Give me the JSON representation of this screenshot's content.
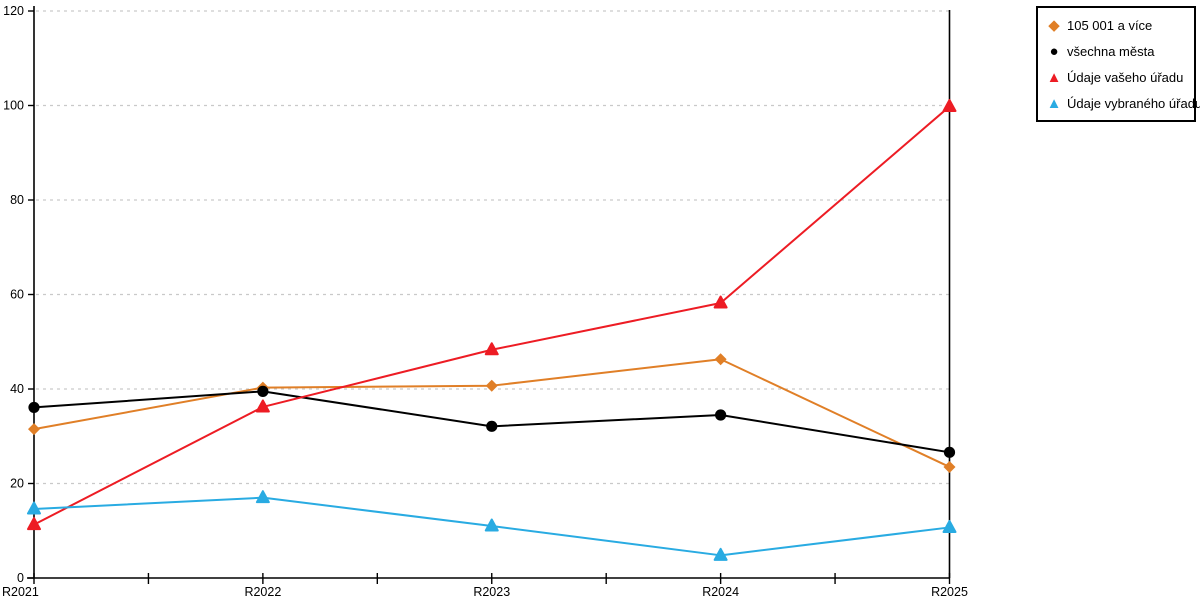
{
  "chart_data": {
    "type": "line",
    "title": "",
    "xlabel": "",
    "ylabel": "",
    "categories": [
      "R2021",
      "R2022",
      "R2023",
      "R2024",
      "R2025"
    ],
    "series": [
      {
        "name": "105 001 a více",
        "marker": "diamond",
        "color": "#E07F27",
        "values": [
          31.5,
          40.3,
          40.7,
          46.3,
          23.5
        ]
      },
      {
        "name": "všechna města",
        "marker": "circle",
        "color": "#000000",
        "values": [
          36.1,
          39.5,
          32.1,
          34.5,
          26.6
        ]
      },
      {
        "name": "Údaje vašeho úřadu",
        "marker": "triangle",
        "color": "#ED1C24",
        "values": [
          11.3,
          36.2,
          48.3,
          58.2,
          99.8
        ]
      },
      {
        "name": "Údaje vybraného úřadu",
        "marker": "triangle",
        "color": "#29ABE2",
        "values": [
          14.6,
          17.0,
          11.0,
          4.8,
          10.7
        ]
      }
    ],
    "ylim": [
      0,
      120
    ],
    "yticks": [
      0,
      20,
      40,
      60,
      80,
      100,
      120
    ],
    "grid": true,
    "grid_color": "#C9C9C9",
    "axis_color": "#000000",
    "legend_position": "top-right"
  }
}
